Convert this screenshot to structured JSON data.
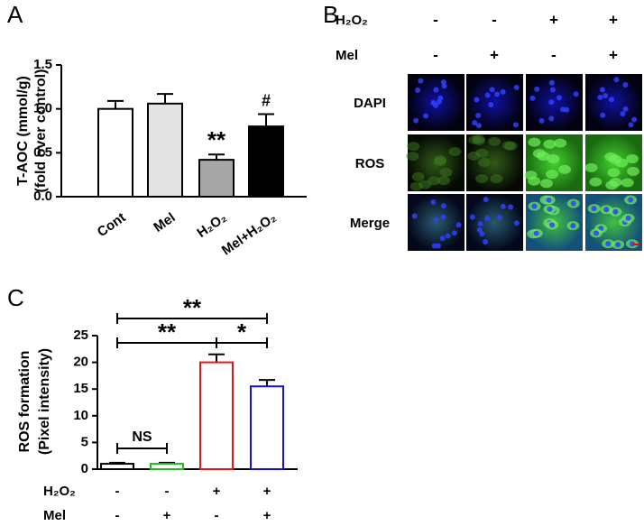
{
  "chart_data": [
    {
      "type": "bar",
      "panel": "A",
      "ylabel": [
        "T-AOC (mmol/g)",
        "(fold over control)"
      ],
      "categories": [
        "Cont",
        "Mel",
        "H₂O₂",
        "Mel+H₂O₂"
      ],
      "values": [
        1.0,
        1.06,
        0.42,
        0.8
      ],
      "errors": [
        0.09,
        0.11,
        0.06,
        0.14
      ],
      "fill_colors": [
        "#ffffff",
        "#e3e3e3",
        "#a6a6a6",
        "#000000"
      ],
      "edge_colors": [
        "#000000",
        "#000000",
        "#000000",
        "#000000"
      ],
      "ylim": [
        0,
        1.5
      ],
      "yticks": [
        {
          "value": 0,
          "label": "0.0"
        },
        {
          "value": 0.5,
          "label": "0.5"
        },
        {
          "value": 1,
          "label": "1.0"
        },
        {
          "value": 1.5,
          "label": "1.5"
        }
      ],
      "annotations": [
        "**",
        "#"
      ]
    },
    {
      "type": "bar",
      "panel": "C",
      "ylabel": [
        "ROS formation",
        "(Pixel intensity)"
      ],
      "categories": null,
      "values": [
        1.0,
        1.0,
        20.0,
        15.5
      ],
      "errors": [
        0.2,
        0.2,
        1.5,
        1.2
      ],
      "fill_colors": [
        "#ffffff",
        "#ffffff",
        "#ffffff",
        "#ffffff"
      ],
      "edge_colors": [
        "#000000",
        "#22bb22",
        "#ee1111",
        "#1111dd"
      ],
      "ylim": [
        0,
        25
      ],
      "yticks": [
        0,
        5,
        10,
        15,
        20,
        25
      ],
      "annotations": [
        "**",
        "**",
        "*",
        "NS"
      ],
      "conditions": [
        {
          "label": "H₂O₂",
          "signs": [
            "-",
            "-",
            "+",
            "+"
          ]
        },
        {
          "label": "Mel",
          "signs": [
            "-",
            "+",
            "-",
            "+"
          ]
        }
      ]
    }
  ],
  "panel_b": {
    "letter": "B",
    "conditions": [
      {
        "label": "H₂O₂",
        "signs": [
          "-",
          "-",
          "+",
          "+"
        ]
      },
      {
        "label": "Mel",
        "signs": [
          "-",
          "+",
          "-",
          "+"
        ]
      }
    ],
    "rows": [
      "DAPI",
      "ROS",
      "Merge"
    ]
  }
}
